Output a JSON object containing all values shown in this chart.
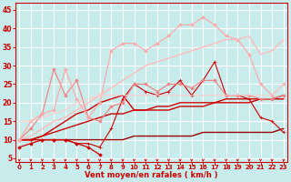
{
  "bg_color": "#c8ecec",
  "grid_color": "#ffffff",
  "xlabel": "Vent moyen/en rafales ( km/h )",
  "xlim": [
    -0.3,
    23.3
  ],
  "ylim": [
    4,
    47
  ],
  "xticks": [
    0,
    1,
    2,
    3,
    4,
    5,
    6,
    7,
    8,
    9,
    10,
    11,
    12,
    13,
    14,
    15,
    16,
    17,
    18,
    19,
    20,
    21,
    22,
    23
  ],
  "yticks": [
    5,
    10,
    15,
    20,
    25,
    30,
    35,
    40,
    45
  ],
  "lines": [
    {
      "x": [
        0,
        1,
        2,
        3,
        4,
        5,
        6,
        7
      ],
      "y": [
        8,
        9,
        10,
        10,
        10,
        9,
        8,
        6
      ],
      "color": "#cc0000",
      "lw": 0.9,
      "marker": "D",
      "ms": 1.8,
      "alpha": 1.0
    },
    {
      "x": [
        0,
        1,
        2,
        3,
        4,
        5,
        6,
        7,
        8,
        9,
        10,
        11,
        12,
        13,
        14,
        15,
        16,
        17,
        18,
        19,
        20,
        21,
        22,
        23
      ],
      "y": [
        10,
        10,
        10,
        10,
        10,
        10,
        10,
        10,
        10,
        10,
        11,
        11,
        11,
        11,
        11,
        11,
        12,
        12,
        12,
        12,
        12,
        12,
        12,
        13
      ],
      "color": "#990000",
      "lw": 1.0,
      "marker": null,
      "ms": 0,
      "alpha": 1.0
    },
    {
      "x": [
        0,
        1,
        2,
        3,
        4,
        5,
        6,
        7,
        8,
        9,
        10,
        11,
        12,
        13,
        14,
        15,
        16,
        17,
        18,
        19,
        20,
        21,
        22,
        23
      ],
      "y": [
        10,
        10,
        11,
        12,
        13,
        14,
        15,
        16,
        17,
        17,
        18,
        18,
        18,
        18,
        19,
        19,
        19,
        20,
        20,
        20,
        20,
        21,
        21,
        22
      ],
      "color": "#cc0000",
      "lw": 1.0,
      "marker": null,
      "ms": 0,
      "alpha": 1.0
    },
    {
      "x": [
        0,
        1,
        2,
        3,
        4,
        5,
        6,
        7,
        8,
        9,
        10,
        11,
        12,
        13,
        14,
        15,
        16,
        17,
        18,
        19,
        20,
        21,
        22,
        23
      ],
      "y": [
        10,
        10,
        11,
        13,
        15,
        17,
        18,
        20,
        21,
        22,
        18,
        18,
        19,
        19,
        20,
        20,
        20,
        20,
        21,
        21,
        21,
        21,
        21,
        21
      ],
      "color": "#cc0000",
      "lw": 1.0,
      "marker": null,
      "ms": 0,
      "alpha": 1.0
    },
    {
      "x": [
        0,
        1,
        2,
        3,
        4,
        5,
        6,
        7,
        8,
        9,
        10,
        11,
        12,
        13,
        14,
        15,
        16,
        17,
        18,
        19,
        20,
        21,
        22,
        23
      ],
      "y": [
        10,
        10,
        10,
        10,
        10,
        9,
        9,
        8,
        13,
        21,
        25,
        23,
        22,
        23,
        26,
        22,
        26,
        31,
        22,
        22,
        21,
        16,
        15,
        12
      ],
      "color": "#cc0000",
      "lw": 0.8,
      "marker": "+",
      "ms": 3.0,
      "alpha": 1.0
    },
    {
      "x": [
        0,
        1,
        2,
        3,
        4,
        5,
        6,
        7,
        8,
        9,
        10,
        11,
        12,
        13,
        14,
        15,
        16,
        17,
        18,
        19,
        20,
        21,
        22,
        23
      ],
      "y": [
        10,
        13,
        17,
        29,
        22,
        26,
        16,
        15,
        19,
        20,
        25,
        25,
        23,
        25,
        25,
        24,
        26,
        26,
        22,
        22,
        22,
        21,
        21,
        22
      ],
      "color": "#ee8888",
      "lw": 0.9,
      "marker": "D",
      "ms": 1.8,
      "alpha": 1.0
    },
    {
      "x": [
        0,
        1,
        2,
        3,
        4,
        5,
        6,
        7,
        8,
        9,
        10,
        11,
        12,
        13,
        14,
        15,
        16,
        17,
        18,
        19,
        20,
        21,
        22,
        23
      ],
      "y": [
        10,
        15,
        17,
        18,
        29,
        21,
        16,
        20,
        34,
        36,
        36,
        34,
        36,
        38,
        41,
        41,
        43,
        41,
        38,
        37,
        33,
        25,
        22,
        25
      ],
      "color": "#ffaaaa",
      "lw": 0.9,
      "marker": "D",
      "ms": 1.8,
      "alpha": 1.0
    },
    {
      "x": [
        0,
        1,
        2,
        3,
        4,
        5,
        6,
        7,
        8,
        9,
        10,
        11,
        12,
        13,
        14,
        15,
        16,
        17,
        18,
        19,
        20,
        21,
        22,
        23
      ],
      "y": [
        10,
        11,
        13,
        15,
        16,
        18,
        20,
        22,
        24,
        26,
        28,
        30,
        31,
        32,
        33,
        34,
        35,
        36,
        37,
        37,
        38,
        33,
        34,
        37
      ],
      "color": "#ffbbbb",
      "lw": 1.0,
      "marker": null,
      "ms": 0,
      "alpha": 1.0
    },
    {
      "x": [
        0,
        1,
        2,
        3,
        4,
        5,
        6,
        7,
        8,
        9,
        10,
        11,
        12,
        13,
        14,
        15,
        16,
        17,
        18,
        19,
        20,
        21,
        22,
        23
      ],
      "y": [
        15,
        15,
        16,
        17,
        18,
        20,
        21,
        22,
        22,
        22,
        22,
        22,
        22,
        22,
        22,
        22,
        22,
        22,
        22,
        22,
        22,
        22,
        22,
        25
      ],
      "color": "#ffcccc",
      "lw": 1.0,
      "marker": null,
      "ms": 0,
      "alpha": 0.8
    }
  ],
  "tick_color": "#cc0000",
  "label_color": "#cc0000",
  "xlabel_fontsize": 6.0,
  "tick_fontsize": 5.0,
  "ytick_fontsize": 5.5
}
